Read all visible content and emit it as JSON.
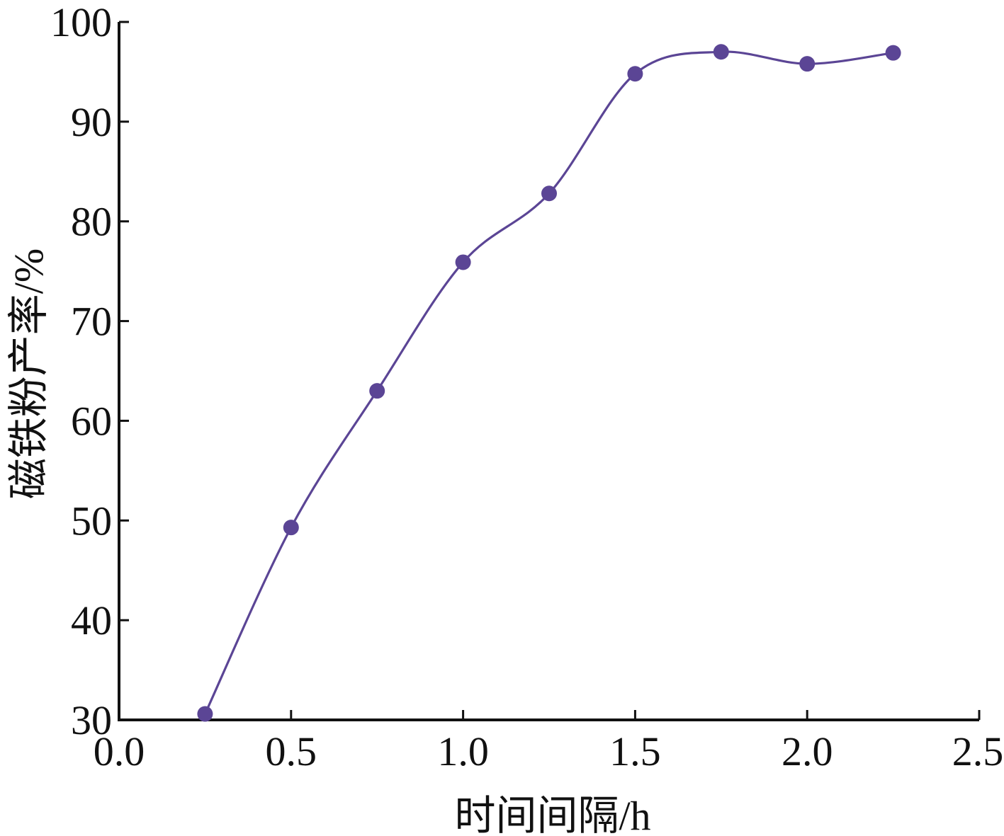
{
  "chart_data": {
    "type": "line",
    "title": "",
    "xlabel": "时间间隔/h",
    "ylabel": "磁铁粉产率/%",
    "xlim": [
      0,
      2.5
    ],
    "ylim": [
      30,
      100
    ],
    "x_ticks": [
      "0.0",
      "0.5",
      "1.0",
      "1.5",
      "2.0",
      "2.5"
    ],
    "y_ticks": [
      "30",
      "40",
      "50",
      "60",
      "70",
      "80",
      "90",
      "100"
    ],
    "grid": false,
    "legend": "none",
    "series": [
      {
        "color": "#5b4595",
        "marker": "filled-circle",
        "smooth": true,
        "x": [
          0.25,
          0.5,
          0.75,
          1.0,
          1.25,
          1.5,
          1.75,
          2.0,
          2.25
        ],
        "y": [
          30.6,
          49.3,
          63.0,
          75.9,
          82.8,
          94.8,
          97.0,
          95.8,
          96.9
        ]
      }
    ]
  }
}
